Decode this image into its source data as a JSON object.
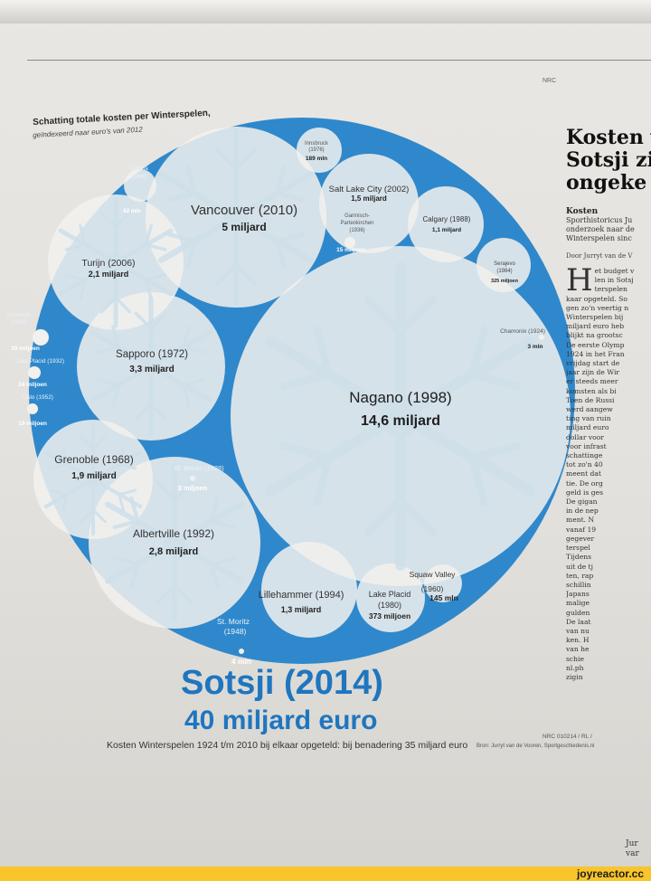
{
  "chart_data": {
    "type": "bubble",
    "title": "Schatting totale kosten per Winterspelen,",
    "subtitle": "geïndexeerd naar euro's van 2012",
    "headline": "Sotsji (2014)",
    "headline_value": "40 miljard euro",
    "footnote": "Kosten Winterspelen 1924 t/m 2010 bij elkaar opgeteld: bij benadering 35 miljard euro",
    "credit_code": "NRC 010214 / RL /",
    "source": "Bron: Jurryt van de Vooren, Sportgeschiedenis.nl",
    "colors": {
      "ring": "#2f88cb",
      "bubble": "#f2f1ed",
      "snowflake": "#cfe0ea",
      "title": "#1f76bf"
    },
    "games": [
      {
        "id": "nagano",
        "city": "Nagano (1998)",
        "value": "14,6 miljard"
      },
      {
        "id": "vancouver",
        "city": "Vancouver (2010)",
        "value": "5 miljard"
      },
      {
        "id": "sapporo",
        "city": "Sapporo (1972)",
        "value": "3,3 miljard"
      },
      {
        "id": "albertville",
        "city": "Albertville (1992)",
        "value": "2,8 miljard"
      },
      {
        "id": "turijn",
        "city": "Turijn (2006)",
        "value": "2,1 miljard"
      },
      {
        "id": "grenoble",
        "city": "Grenoble (1968)",
        "value": "1,9 miljard"
      },
      {
        "id": "saltlake",
        "city": "Salt Lake City (2002)",
        "value": "1,5 miljard"
      },
      {
        "id": "lillehammer",
        "city": "Lillehammer (1994)",
        "value": "1,3 miljard"
      },
      {
        "id": "calgary",
        "city": "Calgary (1988)",
        "value": "1,1 miljard"
      },
      {
        "id": "lakeplacid80",
        "city": "Lake Placid (1980)",
        "value": "373 miljoen"
      },
      {
        "id": "sarajevo",
        "city": "Serajevo (1984)",
        "value": "325 miljoen"
      },
      {
        "id": "innsbruck76",
        "city": "Innsbruck (1976)",
        "value": "189 mln"
      },
      {
        "id": "squaw",
        "city": "Squaw Valley (1960)",
        "value": "145 mln"
      },
      {
        "id": "cortina",
        "city": "Cortina (1956)",
        "value": "62 mln"
      },
      {
        "id": "innsbruck64",
        "city": "Innsbruck (1964)",
        "value": "39 miljoen"
      },
      {
        "id": "lakeplacid32",
        "city": "Lake Placid (1932)",
        "value": "24 miljoen"
      },
      {
        "id": "oslo",
        "city": "Oslo (1952)",
        "value": "19 miljoen"
      },
      {
        "id": "garmisch",
        "city": "Garmisch-Partenkirchen (1936)",
        "value": "15 miljoen"
      },
      {
        "id": "stmoritz48",
        "city": "St. Moritz (1948)",
        "value": "4 mln"
      },
      {
        "id": "stmoritz28",
        "city": "St. Moritz (1928)",
        "value": "3 miljoen"
      },
      {
        "id": "chamonix",
        "city": "Chamonix (1924)",
        "value": "3 mln"
      }
    ]
  },
  "article": {
    "headline_lines": [
      "Kosten v",
      "Sotsji zi",
      "ongeke"
    ],
    "kicker": "Kosten",
    "lead_lines": [
      "Sporthistoricus Ju",
      "onderzoek naar de",
      "Winterspelen sinc"
    ],
    "byline": "Door Jurryt van de V",
    "body_lines": [
      "et budget v",
      "len in Sotsj",
      "terspelen",
      "kaar opgeteld. So",
      "gen zo'n veertig n",
      "Winterspelen bij",
      "miljard euro heb",
      "blijkt na grootsc",
      "De eerste Olymp",
      "1924 in het Fran",
      "vrijdag start de",
      "jaar zijn de Wir",
      "er steeds meer",
      "komsten als bi",
      "Toen de Russi",
      "werd aangew",
      "ting van ruin",
      "miljard euro",
      "dollar voor",
      "voor infrast",
      "schattinge",
      "tot zo'n 40",
      "meent dat",
      "tie. De org",
      "geld is ges",
      "De gigan",
      "in de nep",
      "ment. N",
      "vanaf 19",
      "gegever",
      "terspel",
      "Tijdens",
      "uit de tj",
      "ten, rap",
      "schillin",
      "Japans",
      "malige",
      "gulden",
      "De laat",
      "van nu",
      "ken. H",
      "van he",
      "schie",
      "nl.ph",
      "zigin"
    ],
    "footer_lines": [
      "Jur",
      "var"
    ]
  },
  "masthead": "NRC",
  "banner": "joyreactor.cc"
}
